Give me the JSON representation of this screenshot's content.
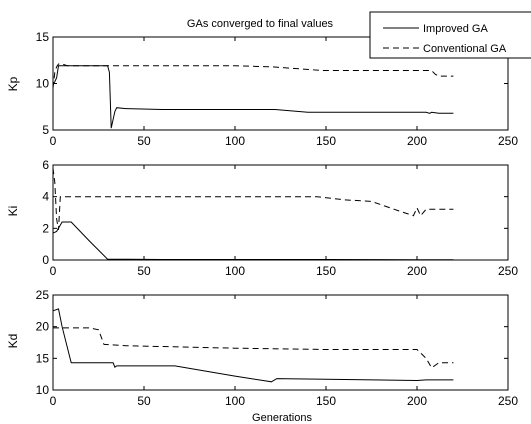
{
  "chart_data": [
    {
      "type": "line",
      "title": "GAs converged to final values",
      "ylabel": "Kp",
      "xlabel": "",
      "xlim": [
        0,
        250
      ],
      "ylim": [
        5,
        15
      ],
      "xticks": [
        "0",
        "50",
        "100",
        "150",
        "200",
        "250"
      ],
      "yticks": [
        "5",
        "10",
        "15"
      ],
      "legend": {
        "position": "top-right",
        "entries": [
          "Improved GA",
          "Conventional GA"
        ]
      },
      "series": [
        {
          "name": "Improved GA",
          "style": "solid",
          "points": [
            [
              0,
              9.9
            ],
            [
              1,
              10.2
            ],
            [
              2,
              10.6
            ],
            [
              3,
              11.9
            ],
            [
              5,
              11.9
            ],
            [
              10,
              11.9
            ],
            [
              20,
              11.9
            ],
            [
              30,
              11.9
            ],
            [
              31,
              11.2
            ],
            [
              32,
              5.2
            ],
            [
              34,
              7.0
            ],
            [
              35,
              7.4
            ],
            [
              40,
              7.3
            ],
            [
              60,
              7.2
            ],
            [
              100,
              7.2
            ],
            [
              122,
              7.2
            ],
            [
              140,
              6.9
            ],
            [
              145,
              6.9
            ],
            [
              160,
              6.9
            ],
            [
              190,
              6.9
            ],
            [
              205,
              6.9
            ],
            [
              207,
              6.8
            ],
            [
              208,
              6.9
            ],
            [
              212,
              6.8
            ],
            [
              220,
              6.8
            ]
          ]
        },
        {
          "name": "Conventional GA",
          "style": "dashed",
          "points": [
            [
              0,
              9.5
            ],
            [
              1,
              11.2
            ],
            [
              2,
              11.8
            ],
            [
              3,
              12.1
            ],
            [
              5,
              12.1
            ],
            [
              8,
              11.9
            ],
            [
              30,
              11.9
            ],
            [
              60,
              11.9
            ],
            [
              100,
              11.9
            ],
            [
              120,
              11.8
            ],
            [
              148,
              11.4
            ],
            [
              200,
              11.4
            ],
            [
              208,
              11.4
            ],
            [
              210,
              11.0
            ],
            [
              212,
              10.8
            ],
            [
              220,
              10.8
            ]
          ]
        }
      ]
    },
    {
      "type": "line",
      "title": "",
      "ylabel": "Ki",
      "xlabel": "",
      "xlim": [
        0,
        250
      ],
      "ylim": [
        0,
        6
      ],
      "xticks": [
        "0",
        "50",
        "100",
        "150",
        "200",
        "250"
      ],
      "yticks": [
        "0",
        "2",
        "4",
        "6"
      ],
      "series": [
        {
          "name": "Improved GA",
          "style": "solid",
          "points": [
            [
              0,
              1.7
            ],
            [
              2,
              1.8
            ],
            [
              3,
              2.0
            ],
            [
              5,
              2.4
            ],
            [
              10,
              2.4
            ],
            [
              20,
              1.2
            ],
            [
              30,
              0.05
            ],
            [
              60,
              0.03
            ],
            [
              100,
              0.03
            ],
            [
              150,
              0.03
            ],
            [
              200,
              0.02
            ],
            [
              220,
              0.02
            ]
          ]
        },
        {
          "name": "Conventional GA",
          "style": "dashed",
          "points": [
            [
              0,
              5.8
            ],
            [
              1,
              4.9
            ],
            [
              2,
              2.6
            ],
            [
              3,
              1.9
            ],
            [
              4,
              4.0
            ],
            [
              8,
              4.0
            ],
            [
              60,
              4.0
            ],
            [
              100,
              4.0
            ],
            [
              145,
              4.0
            ],
            [
              160,
              3.8
            ],
            [
              175,
              3.7
            ],
            [
              190,
              3.1
            ],
            [
              198,
              2.8
            ],
            [
              200,
              3.3
            ],
            [
              202,
              2.8
            ],
            [
              205,
              3.2
            ],
            [
              210,
              3.2
            ],
            [
              220,
              3.2
            ]
          ]
        }
      ]
    },
    {
      "type": "line",
      "title": "",
      "ylabel": "Kd",
      "xlabel": "Generations",
      "xlim": [
        0,
        250
      ],
      "ylim": [
        10,
        25
      ],
      "xticks": [
        "0",
        "50",
        "100",
        "150",
        "200",
        "250"
      ],
      "yticks": [
        "10",
        "15",
        "20",
        "25"
      ],
      "series": [
        {
          "name": "Improved GA",
          "style": "solid",
          "points": [
            [
              0,
              22.5
            ],
            [
              3,
              22.8
            ],
            [
              5,
              20.0
            ],
            [
              10,
              14.3
            ],
            [
              20,
              14.3
            ],
            [
              33,
              14.3
            ],
            [
              34,
              13.6
            ],
            [
              35,
              13.8
            ],
            [
              50,
              13.8
            ],
            [
              67,
              13.8
            ],
            [
              100,
              12.2
            ],
            [
              120,
              11.3
            ],
            [
              123,
              11.8
            ],
            [
              150,
              11.7
            ],
            [
              200,
              11.5
            ],
            [
              205,
              11.6
            ],
            [
              220,
              11.6
            ]
          ]
        },
        {
          "name": "Conventional GA",
          "style": "dashed",
          "points": [
            [
              0,
              19.8
            ],
            [
              5,
              19.8
            ],
            [
              20,
              19.8
            ],
            [
              25,
              19.5
            ],
            [
              28,
              17.2
            ],
            [
              40,
              17.0
            ],
            [
              100,
              16.6
            ],
            [
              150,
              16.4
            ],
            [
              200,
              16.4
            ],
            [
              205,
              15.0
            ],
            [
              208,
              13.5
            ],
            [
              212,
              14.3
            ],
            [
              220,
              14.3
            ]
          ]
        }
      ]
    }
  ]
}
